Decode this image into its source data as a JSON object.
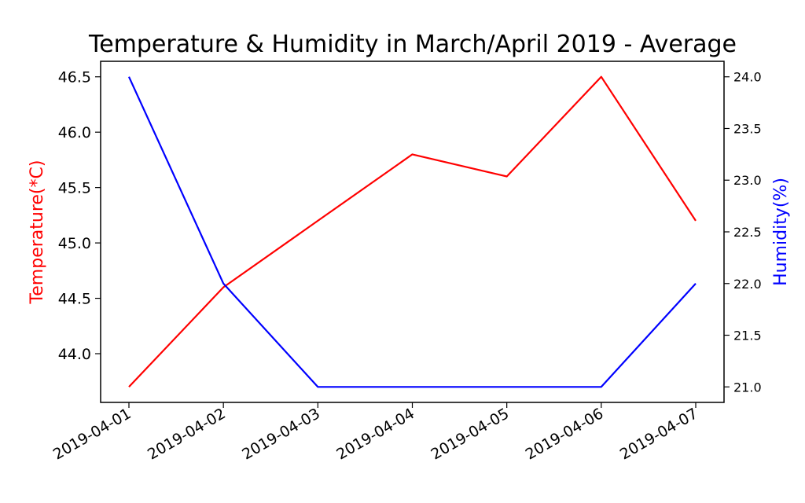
{
  "chart_data": {
    "type": "line",
    "title": "Temperature & Humidity in March/April 2019 - Average",
    "x": [
      "2019-04-01",
      "2019-04-02",
      "2019-04-03",
      "2019-04-04",
      "2019-04-05",
      "2019-04-06",
      "2019-04-07"
    ],
    "series": [
      {
        "axis": "left",
        "color": "#ff0000",
        "values": [
          43.7,
          44.6,
          45.2,
          45.8,
          45.6,
          46.5,
          45.2
        ]
      },
      {
        "axis": "right",
        "color": "#0000ff",
        "values": [
          24.0,
          22.0,
          21.0,
          21.0,
          21.0,
          21.0,
          22.0
        ]
      }
    ],
    "y_left": {
      "label": "Temperature(*C)",
      "color": "#ff0000",
      "ticks": [
        "44.0",
        "44.5",
        "45.0",
        "45.5",
        "46.0",
        "46.5"
      ],
      "tick_values": [
        44.0,
        44.5,
        45.0,
        45.5,
        46.0,
        46.5
      ],
      "range": [
        43.56,
        46.64
      ]
    },
    "y_right": {
      "label": "Humidity(%)",
      "color": "#0000ff",
      "ticks": [
        "21.0",
        "21.5",
        "22.0",
        "22.5",
        "23.0",
        "23.5",
        "24.0"
      ],
      "tick_values": [
        21.0,
        21.5,
        22.0,
        22.5,
        23.0,
        23.5,
        24.0
      ],
      "range": [
        20.85,
        24.15
      ]
    },
    "grid": false,
    "legend": "none"
  }
}
